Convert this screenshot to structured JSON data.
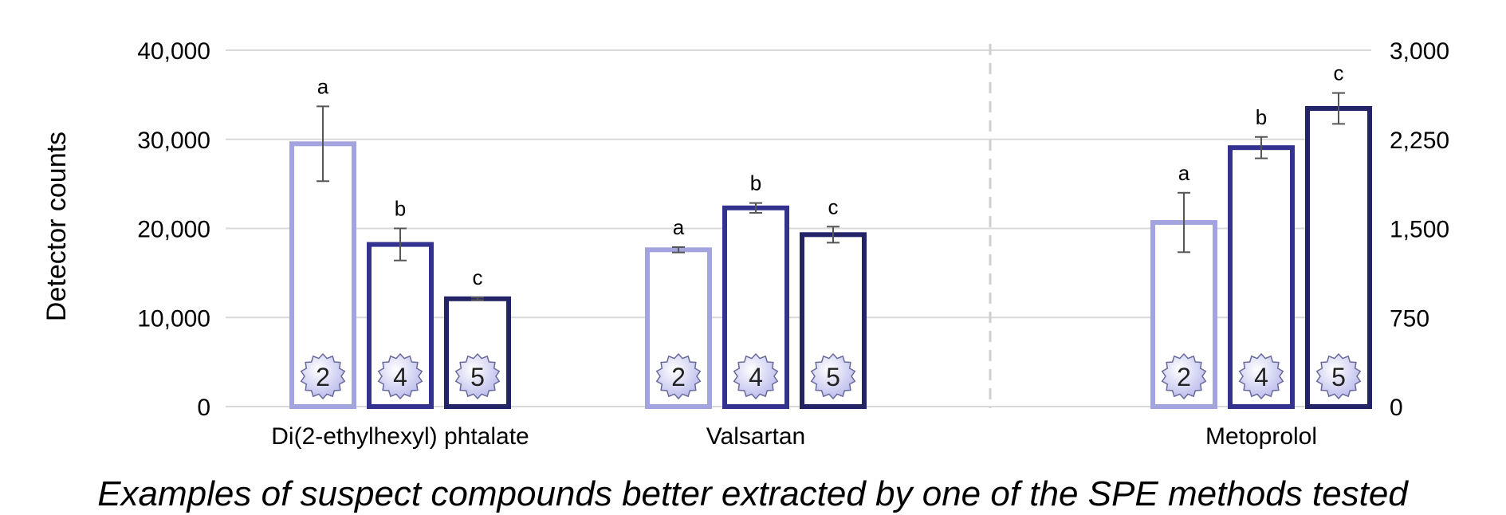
{
  "chart_data": {
    "type": "bar",
    "caption": "Examples of suspect compounds better extracted by one of the SPE methods tested",
    "ylabel": "Detector counts",
    "y_left": {
      "min": 0,
      "max": 40000,
      "ticks": [
        "0",
        "10,000",
        "20,000",
        "30,000",
        "40,000"
      ]
    },
    "y_right": {
      "min": 0,
      "max": 3000,
      "ticks": [
        "0",
        "750",
        "1,500",
        "2,250",
        "3,000"
      ]
    },
    "grid": true,
    "colors": {
      "method_2": "#a3a3e0",
      "method_4": "#33338f",
      "method_5": "#232368",
      "grid": "#d9d9d9",
      "error": "#555555",
      "divider": "#cfcfcf"
    },
    "groups": [
      {
        "category": "Di(2-ethylhexyl) phtalate",
        "axis": "left",
        "bars": [
          {
            "method": "2",
            "value": 29500,
            "error": 4200,
            "letter": "a"
          },
          {
            "method": "4",
            "value": 18200,
            "error": 1800,
            "letter": "b"
          },
          {
            "method": "5",
            "value": 12100,
            "error": 150,
            "letter": "c"
          }
        ]
      },
      {
        "category": "Valsartan",
        "axis": "left",
        "bars": [
          {
            "method": "2",
            "value": 17600,
            "error": 300,
            "letter": "a"
          },
          {
            "method": "4",
            "value": 22300,
            "error": 550,
            "letter": "b"
          },
          {
            "method": "5",
            "value": 19300,
            "error": 900,
            "letter": "c"
          }
        ]
      },
      {
        "category": "Metoprolol",
        "axis": "right",
        "bars": [
          {
            "method": "2",
            "value": 1550,
            "error": 250,
            "letter": "a"
          },
          {
            "method": "4",
            "value": 2180,
            "error": 90,
            "letter": "b"
          },
          {
            "method": "5",
            "value": 2510,
            "error": 130,
            "letter": "c"
          }
        ]
      }
    ]
  }
}
